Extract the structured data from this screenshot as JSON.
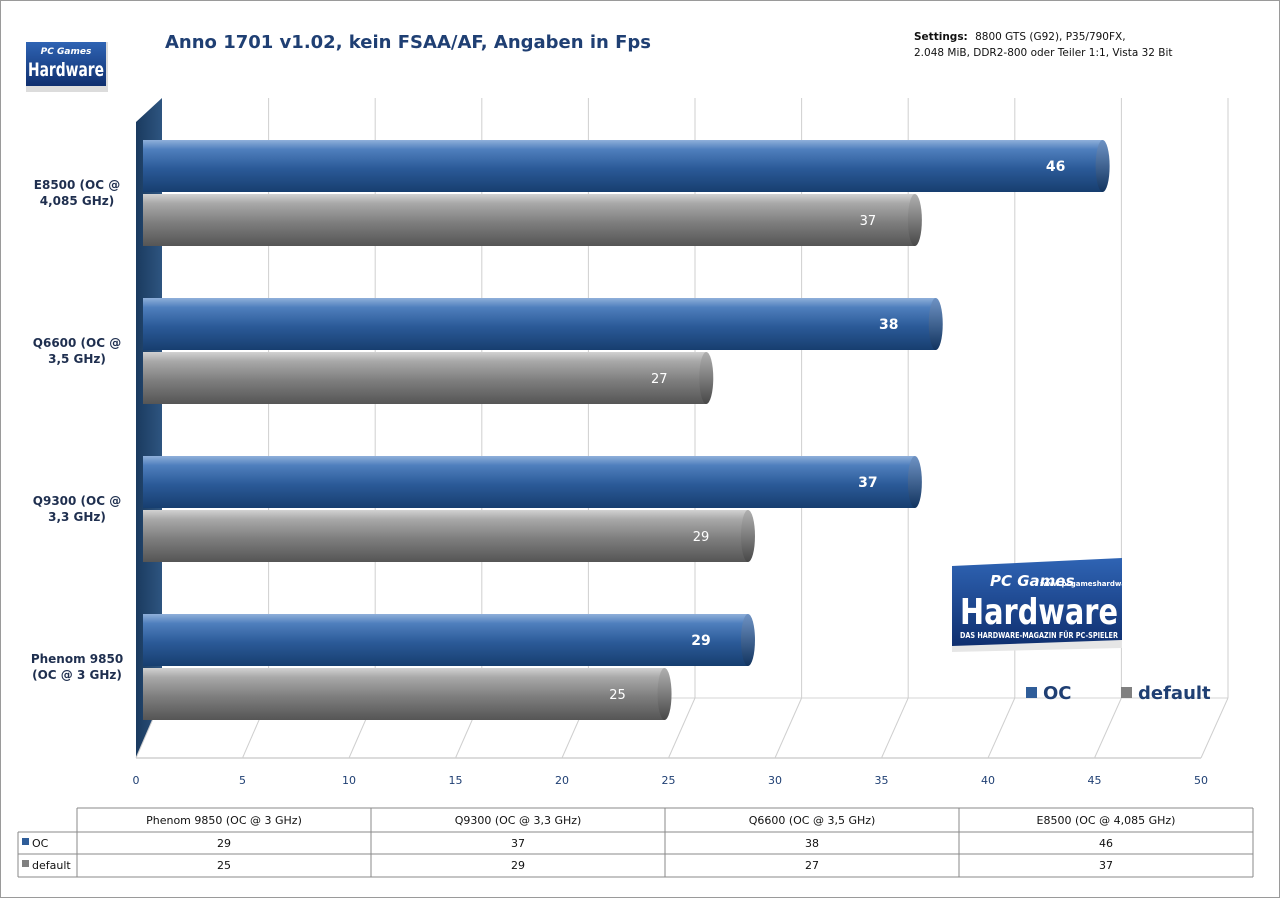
{
  "chart_data": {
    "type": "bar",
    "orientation": "horizontal",
    "title": "Anno 1701 v1.02, kein FSAA/AF, Angaben in Fps",
    "settings": {
      "label": "Settings:",
      "line1": "8800 GTS (G92), P35/790FX,",
      "line2": "2.048 MiB, DDR2-800 oder Teiler 1:1, Vista 32 Bit"
    },
    "categories": [
      "E8500 (OC @ 4,085 GHz)",
      "Q6600 (OC @ 3,5 GHz)",
      "Q9300 (OC @ 3,3 GHz)",
      "Phenom 9850 (OC @ 3 GHz)"
    ],
    "category_label_lines": [
      [
        "E8500  (OC @",
        "4,085  GHz)"
      ],
      [
        "Q6600  (OC @",
        "3,5 GHz)"
      ],
      [
        "Q9300  (OC @",
        "3,3 GHz)"
      ],
      [
        "Phenom 9850",
        "(OC @ 3 GHz)"
      ]
    ],
    "series": [
      {
        "name": "OC",
        "values": [
          46,
          38,
          37,
          29
        ],
        "color": "#2f5d99"
      },
      {
        "name": "default",
        "values": [
          37,
          27,
          29,
          25
        ],
        "color": "#808080"
      }
    ],
    "xlim": [
      0,
      50
    ],
    "xticks": [
      "0",
      "5",
      "10",
      "15",
      "20",
      "25",
      "30",
      "35",
      "40",
      "45",
      "50"
    ],
    "grid": true,
    "legend_position": "bottom-right",
    "data_table": {
      "columns": [
        "Phenom 9850 (OC @ 3 GHz)",
        "Q9300 (OC @ 3,3 GHz)",
        "Q6600 (OC @ 3,5 GHz)",
        "E8500 (OC @ 4,085 GHz)"
      ],
      "rows": [
        {
          "name": "OC",
          "values": [
            "29",
            "37",
            "38",
            "46"
          ],
          "color": "#2f5d99"
        },
        {
          "name": "default",
          "values": [
            "25",
            "29",
            "27",
            "37"
          ],
          "color": "#808080"
        }
      ]
    }
  },
  "logos": {
    "small": {
      "brand": "PC Games",
      "text": "Hardware"
    },
    "large": {
      "brand": "PC Games",
      "url": "www.pcgameshardware.de",
      "text": "Hardware",
      "tagline": "DAS HARDWARE-MAGAZIN FÜR PC-SPIELER"
    }
  }
}
